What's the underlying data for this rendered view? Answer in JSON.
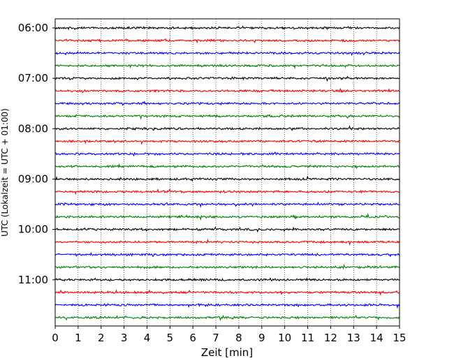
{
  "chart_data": {
    "type": "line",
    "title": "",
    "xlabel": "Zeit  [min]",
    "ylabel": "UTC (Lokalzeit = UTC + 01:00)",
    "xlim": [
      0,
      15
    ],
    "x_ticks": [
      "0",
      "1",
      "2",
      "3",
      "4",
      "5",
      "6",
      "7",
      "8",
      "9",
      "10",
      "11",
      "12",
      "13",
      "14",
      "15"
    ],
    "y_tick_labels": [
      "06:00",
      "07:00",
      "08:00",
      "09:00",
      "10:00",
      "11:00"
    ],
    "trace_interval_min": 15,
    "first_trace_utc": "06:00",
    "trace_count": 24,
    "trace_colors": [
      "#000000",
      "#ff0000",
      "#0000ff",
      "#008000"
    ],
    "grid": "vertical dotted at each minute",
    "traces_utc": [
      "06:00",
      "06:15",
      "06:30",
      "06:45",
      "07:00",
      "07:15",
      "07:30",
      "07:45",
      "08:00",
      "08:15",
      "08:30",
      "08:45",
      "09:00",
      "09:15",
      "09:30",
      "09:45",
      "10:00",
      "10:15",
      "10:30",
      "10:45",
      "11:00",
      "11:15",
      "11:30",
      "11:45"
    ]
  }
}
